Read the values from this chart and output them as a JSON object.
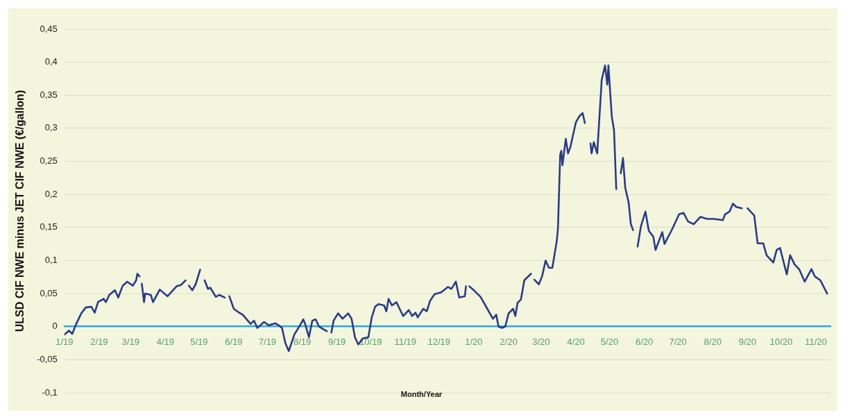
{
  "chart_data": {
    "type": "line",
    "ylabel": "ULSD CIF NWE minus JET CIF NWE (€/gallon)",
    "xlabel": "Month/Year",
    "grid": "y",
    "legend": false,
    "marker": "none",
    "line_style": "solid",
    "xlim": [
      "2019-01-01",
      "2020-11-14"
    ],
    "xticks": [
      {
        "value": "2019-01-01",
        "label": "1/19"
      },
      {
        "value": "2019-02-01",
        "label": "2/19"
      },
      {
        "value": "2019-03-01",
        "label": "3/19"
      },
      {
        "value": "2019-04-01",
        "label": "4/19"
      },
      {
        "value": "2019-05-01",
        "label": "5/19"
      },
      {
        "value": "2019-06-01",
        "label": "6/19"
      },
      {
        "value": "2019-07-01",
        "label": "7/19"
      },
      {
        "value": "2019-08-01",
        "label": "8/19"
      },
      {
        "value": "2019-09-01",
        "label": "9/19"
      },
      {
        "value": "2019-10-01",
        "label": "10/19"
      },
      {
        "value": "2019-11-01",
        "label": "11/19"
      },
      {
        "value": "2019-12-01",
        "label": "12/19"
      },
      {
        "value": "2020-01-01",
        "label": "1/20"
      },
      {
        "value": "2020-02-01",
        "label": "2/20"
      },
      {
        "value": "2020-03-01",
        "label": "3/20"
      },
      {
        "value": "2020-04-01",
        "label": "4/20"
      },
      {
        "value": "2020-05-01",
        "label": "5/20"
      },
      {
        "value": "2020-06-01",
        "label": "6/20"
      },
      {
        "value": "2020-07-01",
        "label": "7/20"
      },
      {
        "value": "2020-08-01",
        "label": "8/20"
      },
      {
        "value": "2020-09-01",
        "label": "9/20"
      },
      {
        "value": "2020-10-01",
        "label": "10/20"
      },
      {
        "value": "2020-11-01",
        "label": "11/20"
      }
    ],
    "ylim": [
      -0.1,
      0.45
    ],
    "yticks": [
      {
        "value": -0.1,
        "label": "-0,1"
      },
      {
        "value": -0.05,
        "label": "-0,05"
      },
      0,
      {
        "value": 0.05,
        "label": "0,05"
      },
      {
        "value": 0.1,
        "label": "0,1"
      },
      {
        "value": 0.15,
        "label": "0,15"
      },
      {
        "value": 0.2,
        "label": "0,2"
      },
      {
        "value": 0.25,
        "label": "0,25"
      },
      {
        "value": 0.3,
        "label": "0,3"
      },
      {
        "value": 0.35,
        "label": "0,35"
      },
      {
        "value": 0.4,
        "label": "0,4"
      },
      {
        "value": 0.45,
        "label": "0,45"
      }
    ],
    "series": [
      {
        "color": "#283a8c",
        "x": [
          "2019-01-01",
          "2019-01-05",
          "2019-01-08",
          "2019-01-11",
          "2019-01-16",
          "2019-01-20",
          "2019-01-25",
          "2019-01-28",
          "2019-01-31",
          "2019-02-05",
          "2019-02-07",
          "2019-02-10",
          "2019-02-15",
          "2019-02-18",
          "2019-02-22",
          "2019-02-26",
          "2019-03-03",
          "2019-03-06",
          "2019-03-07",
          "2019-03-09",
          "2019-03-10",
          "2019-03-11",
          "2019-03-13",
          "2019-03-14",
          "2019-03-19",
          "2019-03-21",
          "2019-03-27",
          "2019-04-03",
          "2019-04-11",
          "2019-04-15",
          "2019-04-19",
          "2019-04-21",
          "2019-04-22",
          "2019-04-25",
          "2019-04-28",
          "2019-05-02",
          "2019-05-04",
          "2019-05-06",
          "2019-05-09",
          "2019-05-11",
          "2019-05-16",
          "2019-05-19",
          "2019-05-24",
          "2019-05-26",
          "2019-05-28",
          "2019-06-01",
          "2019-06-05",
          "2019-06-09",
          "2019-06-16",
          "2019-06-19",
          "2019-06-22",
          "2019-06-28",
          "2019-07-02",
          "2019-07-08",
          "2019-07-11",
          "2019-07-14",
          "2019-07-17",
          "2019-07-20",
          "2019-07-25",
          "2019-07-30",
          "2019-08-02",
          "2019-08-04",
          "2019-08-07",
          "2019-08-10",
          "2019-08-13",
          "2019-08-16",
          "2019-08-20",
          "2019-08-23",
          "2019-08-25",
          "2019-08-27",
          "2019-08-29",
          "2019-09-02",
          "2019-09-06",
          "2019-09-11",
          "2019-09-14",
          "2019-09-17",
          "2019-09-20",
          "2019-09-24",
          "2019-09-29",
          "2019-10-02",
          "2019-10-05",
          "2019-10-08",
          "2019-10-13",
          "2019-10-15",
          "2019-10-17",
          "2019-10-20",
          "2019-10-24",
          "2019-10-30",
          "2019-11-04",
          "2019-11-07",
          "2019-11-10",
          "2019-11-12",
          "2019-11-17",
          "2019-11-20",
          "2019-11-23",
          "2019-11-27",
          "2019-12-03",
          "2019-12-09",
          "2019-12-12",
          "2019-12-16",
          "2019-12-19",
          "2019-12-24",
          "2019-12-25",
          "2019-12-26",
          "2019-12-28",
          "2020-01-01",
          "2020-01-07",
          "2020-01-13",
          "2020-01-18",
          "2020-01-21",
          "2020-01-23",
          "2020-01-26",
          "2020-01-29",
          "2020-02-01",
          "2020-02-05",
          "2020-02-07",
          "2020-02-09",
          "2020-02-12",
          "2020-02-15",
          "2020-02-18",
          "2020-02-21",
          "2020-02-23",
          "2020-02-24",
          "2020-02-28",
          "2020-03-02",
          "2020-03-05",
          "2020-03-08",
          "2020-03-11",
          "2020-03-15",
          "2020-03-16",
          "2020-03-18",
          "2020-03-19",
          "2020-03-20",
          "2020-03-23",
          "2020-03-25",
          "2020-03-27",
          "2020-04-01",
          "2020-04-04",
          "2020-04-07",
          "2020-04-09",
          "2020-04-11",
          "2020-04-14",
          "2020-04-15",
          "2020-04-17",
          "2020-04-20",
          "2020-04-24",
          "2020-04-27",
          "2020-04-29",
          "2020-04-30",
          "2020-05-03",
          "2020-05-05",
          "2020-05-07",
          "2020-05-09",
          "2020-05-11",
          "2020-05-13",
          "2020-05-15",
          "2020-05-18",
          "2020-05-20",
          "2020-05-22",
          "2020-05-24",
          "2020-05-26",
          "2020-05-29",
          "2020-06-02",
          "2020-06-05",
          "2020-06-09",
          "2020-06-11",
          "2020-06-17",
          "2020-06-19",
          "2020-06-26",
          "2020-07-02",
          "2020-07-06",
          "2020-07-10",
          "2020-07-15",
          "2020-07-21",
          "2020-07-27",
          "2020-08-02",
          "2020-08-10",
          "2020-08-12",
          "2020-08-16",
          "2020-08-19",
          "2020-08-22",
          "2020-08-27",
          "2020-08-29",
          "2020-09-01",
          "2020-09-07",
          "2020-09-10",
          "2020-09-15",
          "2020-09-18",
          "2020-09-24",
          "2020-09-27",
          "2020-09-30",
          "2020-10-06",
          "2020-10-09",
          "2020-10-13",
          "2020-10-17",
          "2020-10-22",
          "2020-10-28",
          "2020-10-31",
          "2020-11-05",
          "2020-11-08",
          "2020-11-11"
        ],
        "values": [
          -0.012,
          -0.006,
          -0.011,
          0.002,
          0.02,
          0.029,
          0.03,
          0.021,
          0.037,
          0.042,
          0.037,
          0.048,
          0.055,
          0.044,
          0.062,
          0.068,
          0.062,
          0.07,
          0.08,
          0.076,
          null,
          0.065,
          0.037,
          0.05,
          0.048,
          0.037,
          0.056,
          0.046,
          0.061,
          0.063,
          0.07,
          null,
          0.062,
          0.055,
          0.064,
          0.086,
          null,
          0.07,
          0.057,
          0.059,
          0.045,
          0.048,
          0.044,
          null,
          0.046,
          0.027,
          0.022,
          0.018,
          0.004,
          0.009,
          -0.002,
          0.007,
          0.002,
          0.005,
          0.002,
          -0.002,
          -0.025,
          -0.037,
          -0.012,
          0.002,
          0.011,
          0.002,
          -0.016,
          0.009,
          0.011,
          0,
          -0.004,
          -0.007,
          null,
          -0.009,
          0.009,
          0.02,
          0.012,
          0.02,
          0.012,
          -0.016,
          -0.027,
          -0.018,
          -0.016,
          0.014,
          0.03,
          0.034,
          0.032,
          0.023,
          0.042,
          0.032,
          0.037,
          0.016,
          0.025,
          0.016,
          0.021,
          0.014,
          0.027,
          0.023,
          0.039,
          0.049,
          0.052,
          0.06,
          0.057,
          0.068,
          0.044,
          0.046,
          0.061,
          null,
          0.061,
          0.055,
          0.045,
          0.027,
          0.012,
          0.018,
          0,
          -0.002,
          0,
          0.02,
          0.027,
          0.016,
          0.036,
          0.041,
          0.07,
          0.075,
          0.08,
          null,
          0.071,
          0.064,
          0.077,
          0.1,
          0.089,
          0.089,
          0.13,
          0.148,
          0.26,
          0.266,
          0.244,
          0.284,
          0.262,
          0.271,
          0.309,
          0.318,
          0.323,
          0.308,
          null,
          0.277,
          0.262,
          0.279,
          0.262,
          0.373,
          0.395,
          0.366,
          0.395,
          0.318,
          0.297,
          0.208,
          null,
          0.232,
          0.255,
          0.21,
          0.188,
          0.155,
          0.146,
          null,
          0.121,
          0.152,
          0.174,
          0.145,
          0.136,
          0.116,
          0.143,
          0.125,
          0.148,
          0.17,
          0.172,
          0.159,
          0.155,
          0.166,
          0.163,
          0.163,
          0.161,
          0.17,
          0.174,
          0.186,
          0.181,
          0.179,
          null,
          0.179,
          0.168,
          0.126,
          0.126,
          0.108,
          0.097,
          0.116,
          0.119,
          0.079,
          0.108,
          0.094,
          0.087,
          0.068,
          0.087,
          0.076,
          0.07,
          0.06,
          0.05
        ]
      }
    ]
  }
}
